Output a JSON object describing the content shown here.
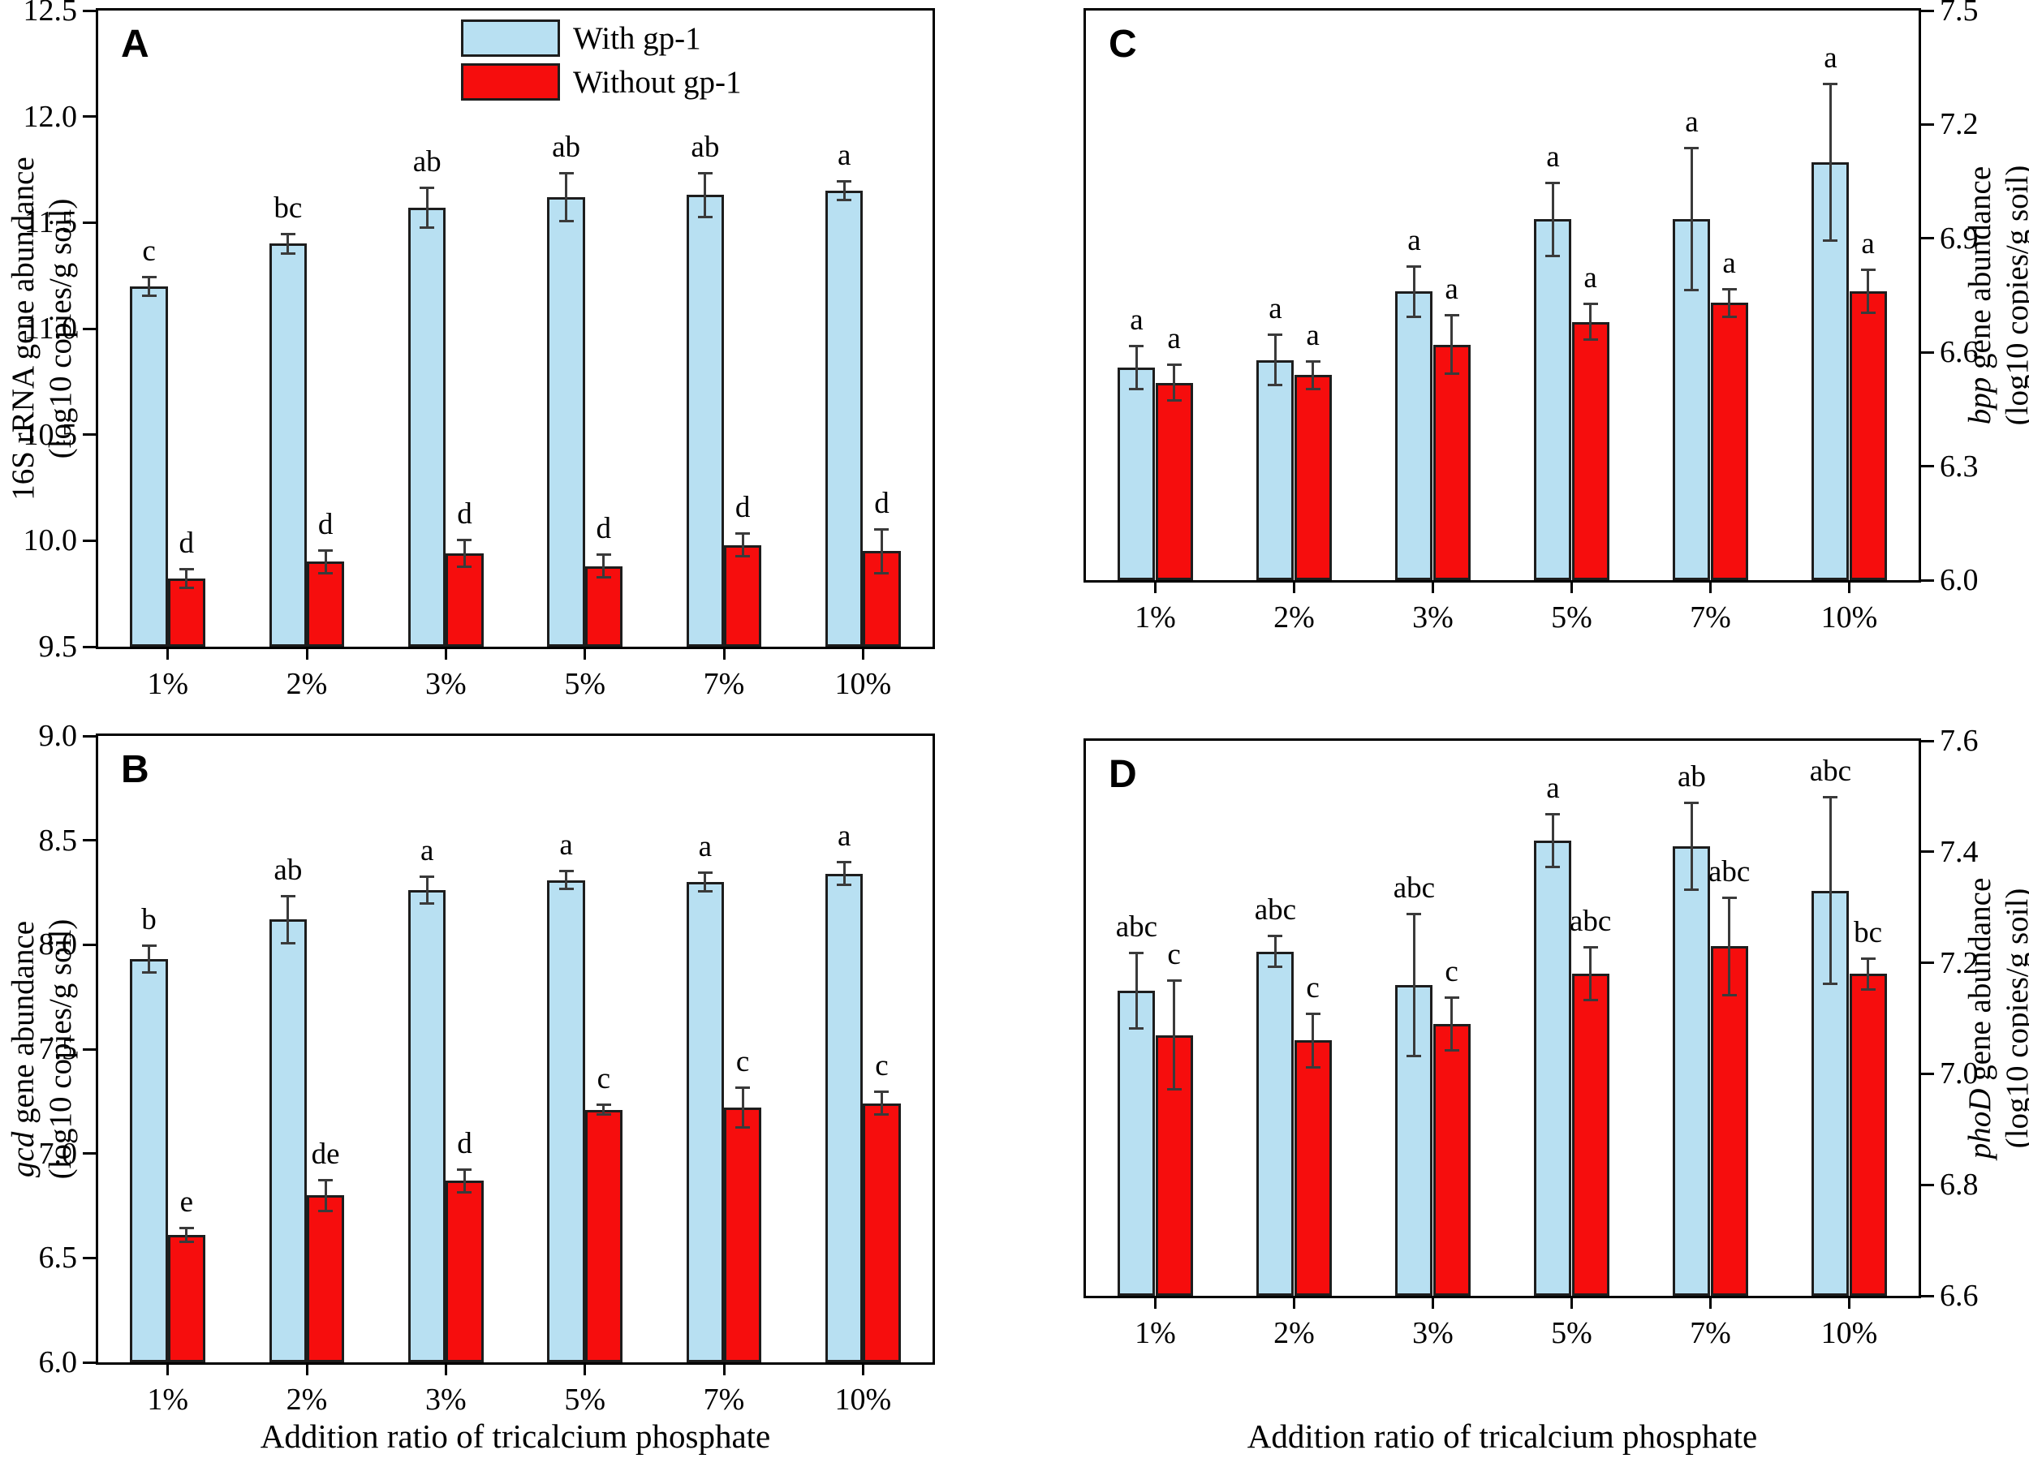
{
  "figure": {
    "x_axis_title": "Addition ratio of tricalcium phosphate",
    "categories": [
      "1%",
      "2%",
      "3%",
      "5%",
      "7%",
      "10%"
    ],
    "legend": [
      {
        "label": "With gp-1",
        "color": "#b8e0f2"
      },
      {
        "label": "Without gp-1",
        "color": "#f60d0d"
      }
    ]
  },
  "chart_data": [
    {
      "type": "bar",
      "panel_label": "A",
      "position": "top-left",
      "y_axis_side": "left",
      "ylabel_italic": "",
      "ylabel_main": "16S rRNA gene abundance",
      "ylabel_units": "(log10 copies/g soil)",
      "ylim": [
        9.5,
        12.5
      ],
      "yticks": [
        9.5,
        10.0,
        10.5,
        11.0,
        11.5,
        12.0,
        12.5
      ],
      "categories": [
        "1%",
        "2%",
        "3%",
        "5%",
        "7%",
        "10%"
      ],
      "series": [
        {
          "name": "With gp-1",
          "key": "with-gp1",
          "color": "#b8e0f2",
          "values": [
            11.2,
            11.4,
            11.57,
            11.62,
            11.63,
            11.65
          ],
          "errors": [
            0.05,
            0.05,
            0.1,
            0.12,
            0.11,
            0.05
          ],
          "letters": [
            "c",
            "bc",
            "ab",
            "ab",
            "ab",
            "a"
          ]
        },
        {
          "name": "Without gp-1",
          "key": "without-gp1",
          "color": "#f60d0d",
          "values": [
            9.82,
            9.9,
            9.94,
            9.88,
            9.98,
            9.95
          ],
          "errors": [
            0.05,
            0.06,
            0.07,
            0.06,
            0.06,
            0.11
          ],
          "letters": [
            "d",
            "d",
            "d",
            "d",
            "d",
            "d"
          ]
        }
      ]
    },
    {
      "type": "bar",
      "panel_label": "B",
      "position": "bottom-left",
      "y_axis_side": "left",
      "ylabel_italic": "gcd",
      "ylabel_main": " gene abundance",
      "ylabel_units": "(log10 copies/g soil)",
      "ylim": [
        6.0,
        9.0
      ],
      "yticks": [
        6.0,
        6.5,
        7.0,
        7.5,
        8.0,
        8.5,
        9.0
      ],
      "categories": [
        "1%",
        "2%",
        "3%",
        "5%",
        "7%",
        "10%"
      ],
      "series": [
        {
          "name": "With gp-1",
          "key": "with-gp1",
          "color": "#b8e0f2",
          "values": [
            7.93,
            8.12,
            8.26,
            8.31,
            8.3,
            8.34
          ],
          "errors": [
            0.07,
            0.12,
            0.07,
            0.05,
            0.05,
            0.06
          ],
          "letters": [
            "b",
            "ab",
            "a",
            "a",
            "a",
            "a"
          ]
        },
        {
          "name": "Without gp-1",
          "key": "without-gp1",
          "color": "#f60d0d",
          "values": [
            6.61,
            6.8,
            6.87,
            7.21,
            7.22,
            7.24
          ],
          "errors": [
            0.04,
            0.08,
            0.06,
            0.03,
            0.1,
            0.06
          ],
          "letters": [
            "e",
            "de",
            "d",
            "c",
            "c",
            "c"
          ]
        }
      ]
    },
    {
      "type": "bar",
      "panel_label": "C",
      "position": "top-right",
      "y_axis_side": "right",
      "ylabel_italic": "bpp",
      "ylabel_main": " gene abundance",
      "ylabel_units": "(log10 copies/g soil)",
      "ylim": [
        6.0,
        7.5
      ],
      "yticks": [
        6.0,
        6.3,
        6.6,
        6.9,
        7.2,
        7.5
      ],
      "categories": [
        "1%",
        "2%",
        "3%",
        "5%",
        "7%",
        "10%"
      ],
      "series": [
        {
          "name": "With gp-1",
          "key": "with-gp1",
          "color": "#b8e0f2",
          "values": [
            6.56,
            6.58,
            6.76,
            6.95,
            6.95,
            7.1
          ],
          "errors": [
            0.06,
            0.07,
            0.07,
            0.1,
            0.19,
            0.21
          ],
          "letters": [
            "a",
            "a",
            "a",
            "a",
            "a",
            "a"
          ]
        },
        {
          "name": "Without gp-1",
          "key": "without-gp1",
          "color": "#f60d0d",
          "values": [
            6.52,
            6.54,
            6.62,
            6.68,
            6.73,
            6.76
          ],
          "errors": [
            0.05,
            0.04,
            0.08,
            0.05,
            0.04,
            0.06
          ],
          "letters": [
            "a",
            "a",
            "a",
            "a",
            "a",
            "a"
          ]
        }
      ]
    },
    {
      "type": "bar",
      "panel_label": "D",
      "position": "bottom-right",
      "y_axis_side": "right",
      "ylabel_italic": "phoD",
      "ylabel_main": " gene abundance",
      "ylabel_units": "(log10 copies/g soil)",
      "ylim": [
        6.6,
        7.6
      ],
      "yticks": [
        6.6,
        6.8,
        7.0,
        7.2,
        7.4,
        7.6
      ],
      "categories": [
        "1%",
        "2%",
        "3%",
        "5%",
        "7%",
        "10%"
      ],
      "series": [
        {
          "name": "With gp-1",
          "key": "with-gp1",
          "color": "#b8e0f2",
          "values": [
            7.15,
            7.22,
            7.16,
            7.42,
            7.41,
            7.33
          ],
          "errors": [
            0.07,
            0.03,
            0.13,
            0.05,
            0.08,
            0.17
          ],
          "letters": [
            "abc",
            "abc",
            "abc",
            "a",
            "ab",
            "abc"
          ]
        },
        {
          "name": "Without gp-1",
          "key": "without-gp1",
          "color": "#f60d0d",
          "values": [
            7.07,
            7.06,
            7.09,
            7.18,
            7.23,
            7.18
          ],
          "errors": [
            0.1,
            0.05,
            0.05,
            0.05,
            0.09,
            0.03
          ],
          "letters": [
            "c",
            "c",
            "c",
            "abc",
            "abc",
            "bc"
          ]
        }
      ]
    }
  ]
}
